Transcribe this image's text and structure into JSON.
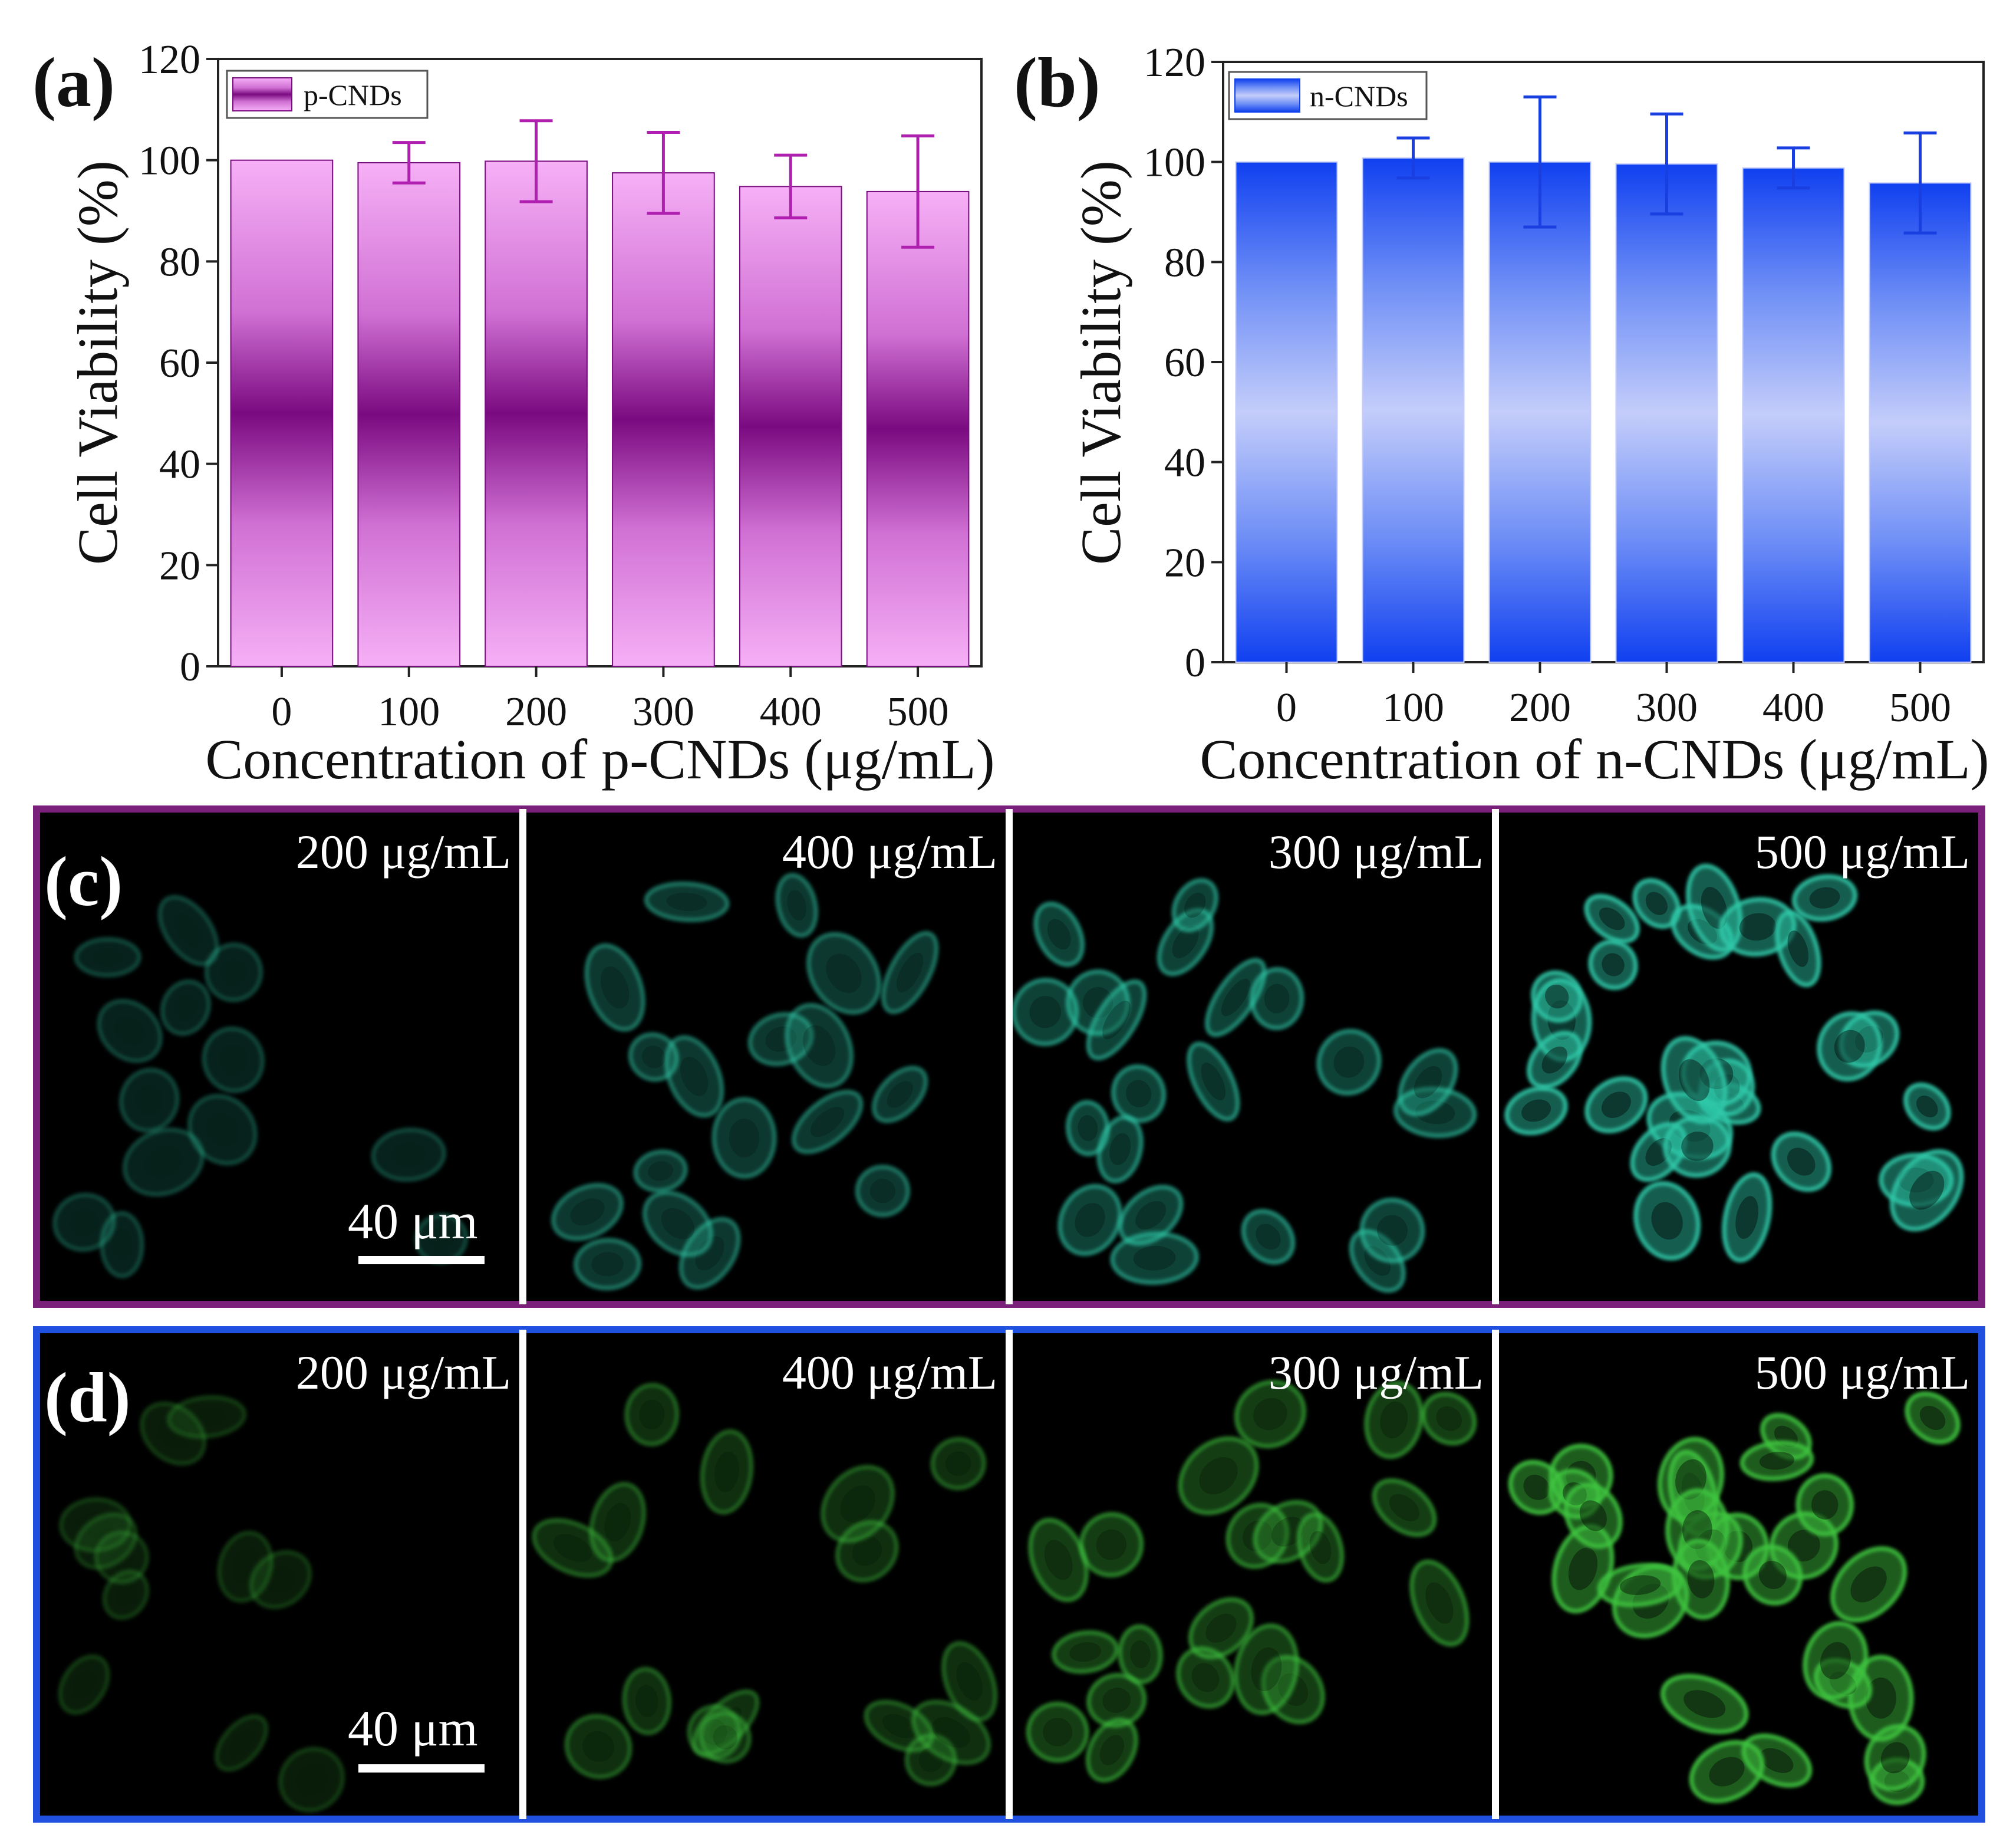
{
  "chart_data": [
    {
      "panel": "(a)",
      "type": "bar",
      "xlabel": "Concentration of p-CNDs (μg/mL)",
      "ylabel": "Cell Viability (%)",
      "categories": [
        "0",
        "100",
        "200",
        "300",
        "400",
        "500"
      ],
      "series": [
        {
          "name": "p-CNDs",
          "values": [
            100,
            99.5,
            99.8,
            97.5,
            94.8,
            93.8
          ],
          "errors": [
            0,
            4,
            8,
            8,
            6.2,
            11
          ]
        }
      ],
      "ylim": [
        0,
        120
      ],
      "yticks": [
        "0",
        "20",
        "40",
        "60",
        "80",
        "100",
        "120"
      ],
      "legend_position": "top-left",
      "grid": false,
      "colors": {
        "bar_edge": "#f4a8f4",
        "bar_middle": "#7a0a80",
        "error": "#b020b0"
      }
    },
    {
      "panel": "(b)",
      "type": "bar",
      "xlabel": "Concentration of n-CNDs (μg/mL)",
      "ylabel": "Cell Viability (%)",
      "categories": [
        "0",
        "100",
        "200",
        "300",
        "400",
        "500"
      ],
      "series": [
        {
          "name": "n-CNDs",
          "values": [
            100,
            100.8,
            100,
            99.6,
            98.8,
            95.8
          ],
          "errors": [
            0,
            4,
            13,
            10,
            4,
            10
          ]
        }
      ],
      "ylim": [
        0,
        120
      ],
      "yticks": [
        "0",
        "20",
        "40",
        "60",
        "80",
        "100",
        "120"
      ],
      "legend_position": "top-left",
      "grid": false,
      "colors": {
        "bar_edge": "#1040f0",
        "bar_middle": "#c4cdfa",
        "error": "#1a3fe0"
      }
    }
  ],
  "micrographs": {
    "c": {
      "letter": "(c)",
      "frame_color": "#7a1f7a",
      "fluor_color": "#2fc8a8",
      "scale_bar": "40 μm",
      "panels": [
        "200 μg/mL",
        "400 μg/mL",
        "300 μg/mL",
        "500 μg/mL"
      ],
      "brightness": [
        0.15,
        0.45,
        0.6,
        1.0
      ]
    },
    "d": {
      "letter": "(d)",
      "frame_color": "#2050e0",
      "fluor_color": "#3ec43e",
      "scale_bar": "40 μm",
      "panels": [
        "200 μg/mL",
        "400 μg/mL",
        "300 μg/mL",
        "500 μg/mL"
      ],
      "brightness": [
        0.08,
        0.35,
        0.55,
        1.0
      ]
    }
  }
}
